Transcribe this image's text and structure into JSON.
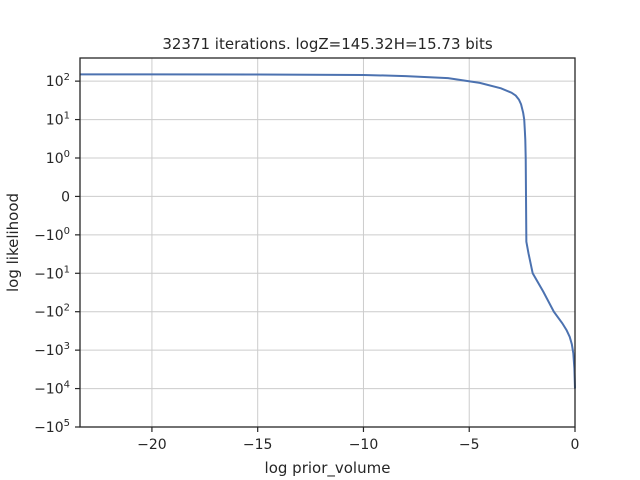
{
  "chart_data": {
    "type": "line",
    "title": "32371 iterations. logZ=145.32H=15.73 bits",
    "xlabel": "log prior_volume",
    "ylabel": "log likelihood",
    "xlim": [
      -23.4,
      0
    ],
    "yscale": "symlog",
    "grid": true,
    "line_color": "#4c72b0",
    "x_ticks": [
      {
        "value": -20,
        "label": "−20"
      },
      {
        "value": -15,
        "label": "−15"
      },
      {
        "value": -10,
        "label": "−10"
      },
      {
        "value": -5,
        "label": "−5"
      },
      {
        "value": 0,
        "label": "0"
      }
    ],
    "y_ticks": [
      {
        "value": 100,
        "base": "10",
        "exp": "2"
      },
      {
        "value": 10,
        "base": "10",
        "exp": "1"
      },
      {
        "value": 1,
        "base": "10",
        "exp": "0"
      },
      {
        "value": 0,
        "base": "0",
        "exp": ""
      },
      {
        "value": -1,
        "base": "−10",
        "exp": "0"
      },
      {
        "value": -10,
        "base": "−10",
        "exp": "1"
      },
      {
        "value": -100,
        "base": "−10",
        "exp": "2"
      },
      {
        "value": -1000,
        "base": "−10",
        "exp": "3"
      },
      {
        "value": -10000,
        "base": "−10",
        "exp": "4"
      },
      {
        "value": -100000,
        "base": "−10",
        "exp": "5"
      }
    ],
    "series": [
      {
        "x": [
          -23.4,
          -20,
          -15,
          -10,
          -8,
          -6,
          -4.5,
          -3.5,
          -3.0,
          -2.8,
          -2.65,
          -2.55,
          -2.45,
          -2.4,
          -2.37,
          -2.35,
          -2.33,
          -2.3,
          -2.2,
          -2.0,
          -1.5,
          -1.0,
          -0.6,
          -0.4,
          -0.25,
          -0.15,
          -0.08,
          -0.03,
          0
        ],
        "y": [
          150,
          150,
          149,
          145,
          135,
          120,
          90,
          65,
          50,
          42,
          33,
          25,
          15,
          10,
          5,
          3,
          1,
          -1.5,
          -3,
          -10,
          -30,
          -100,
          -200,
          -300,
          -450,
          -700,
          -1200,
          -3000,
          -10000
        ]
      }
    ]
  }
}
